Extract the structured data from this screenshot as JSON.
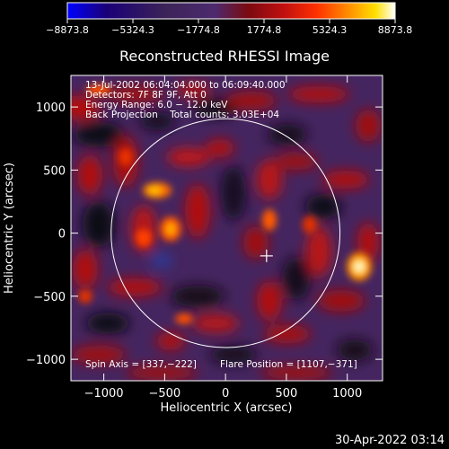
{
  "chart_data": {
    "type": "heatmap",
    "title": "Reconstructed RHESSI Image",
    "xlabel": "Heliocentric X (arcsec)",
    "ylabel": "Heliocentric Y (arcsec)",
    "xlim": [
      -1270,
      1290
    ],
    "ylim": [
      -1170,
      1250
    ],
    "x_ticks": [
      -1000,
      -500,
      0,
      500,
      1000
    ],
    "y_ticks": [
      -1000,
      -500,
      0,
      500,
      1000
    ],
    "x_tick_labels": [
      "−1000",
      "−500",
      "0",
      "500",
      "1000"
    ],
    "y_tick_labels": [
      "−1000",
      "−500",
      "0",
      "500",
      "1000"
    ],
    "colorbar": {
      "range": [
        -8873.8,
        8873.8
      ],
      "tick_values": [
        -8873.8,
        -5324.3,
        -1774.8,
        1774.8,
        5324.3,
        8873.8
      ],
      "tick_labels": [
        "−8873.8",
        "−5324.3",
        "−1774.8",
        "1774.8",
        "5324.3",
        "8873.8"
      ],
      "colors": [
        "#0000ff",
        "#1a0077",
        "#3c2458",
        "#4d2a6e",
        "#7a0a10",
        "#c01010",
        "#ff3000",
        "#ff9000",
        "#ffe000",
        "#ffffff"
      ]
    },
    "info_lines": [
      "13-Jul-2002 06:04:04.000 to 06:09:40.000",
      "Detectors: 7F 8F 9F, Att 0",
      "Energy Range: 6.0 − 12.0 keV",
      "Back Projection    Total counts: 3.03E+04"
    ],
    "spin_axis_label": "Spin Axis = [337,−222]",
    "flare_position_label": "Flare Position = [1107,−371]",
    "solar_disk": {
      "center": [
        0,
        0
      ],
      "radius_arcsec": 940
    },
    "flare_marker": [
      337,
      -180
    ],
    "bright_sources": [
      {
        "x": 1107,
        "y": -371,
        "value": 8873.8
      },
      {
        "x": -520,
        "y": 280,
        "value": 6000
      },
      {
        "x": -450,
        "y": 0,
        "value": 5500
      },
      {
        "x": -600,
        "y": -100,
        "value": 4500
      },
      {
        "x": 350,
        "y": 20,
        "value": 4000
      }
    ]
  },
  "timestamp": "30-Apr-2022 03:14"
}
